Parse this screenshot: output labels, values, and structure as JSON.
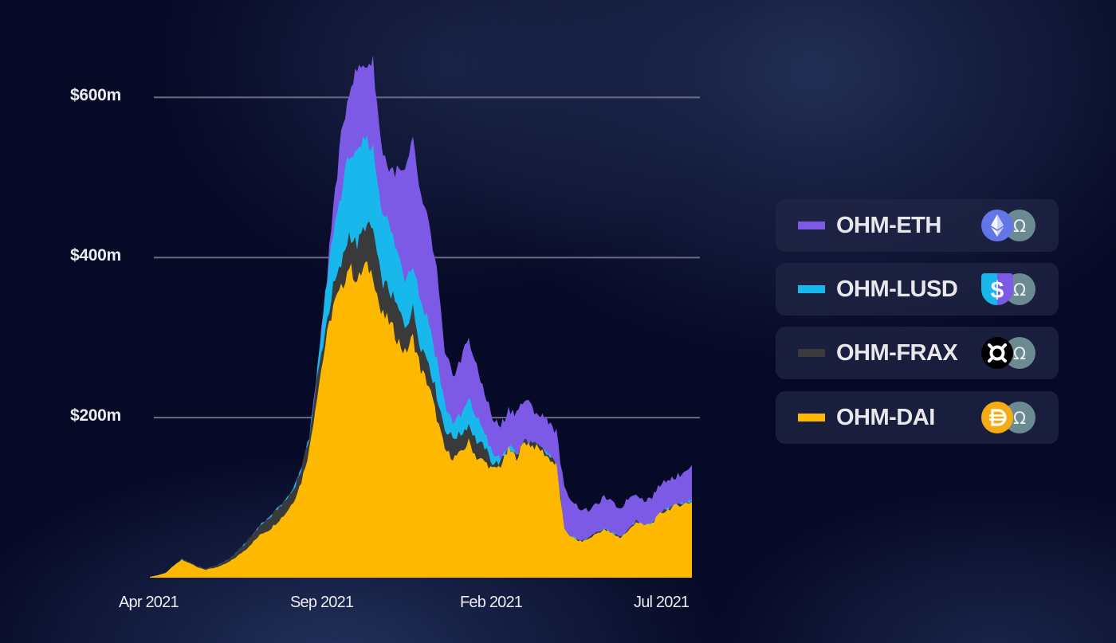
{
  "chart_data": {
    "type": "area",
    "stacked": true,
    "title": "",
    "xlabel": "",
    "ylabel": "",
    "ylim": [
      0,
      650
    ],
    "grid": {
      "horizontal": true,
      "values": [
        200,
        400,
        600
      ]
    },
    "y_ticks": [
      "$200m",
      "$400m",
      "$600m"
    ],
    "y_tick_values": [
      200,
      400,
      600
    ],
    "x_ticks": [
      "Apr 2021",
      "Sep 2021",
      "Feb 2021",
      "Jul 2021"
    ],
    "x_tick_positions": [
      0,
      0.33,
      0.66,
      1.0
    ],
    "legend_position": "right",
    "x": [
      0,
      1,
      2,
      3,
      4,
      5,
      6,
      7,
      8,
      9,
      10,
      11,
      12,
      13,
      14,
      15,
      16,
      17,
      18,
      19,
      20,
      21,
      22,
      23,
      24,
      25,
      26,
      27,
      28,
      29,
      30,
      31,
      32,
      33,
      34,
      35,
      36,
      37,
      38,
      39,
      40,
      41,
      42,
      43,
      44,
      45,
      46,
      47,
      48,
      49,
      50,
      51,
      52,
      53,
      54,
      55,
      56,
      57,
      58,
      59,
      60,
      61,
      62,
      63,
      64,
      65,
      66,
      67,
      68
    ],
    "series": [
      {
        "name": "OHM-DAI",
        "color": "#ffb800",
        "values": [
          1,
          3,
          6,
          15,
          22,
          18,
          13,
          10,
          12,
          15,
          20,
          27,
          35,
          45,
          55,
          60,
          70,
          80,
          95,
          120,
          160,
          230,
          290,
          340,
          360,
          390,
          370,
          390,
          380,
          330,
          320,
          300,
          280,
          300,
          260,
          240,
          200,
          160,
          150,
          155,
          170,
          150,
          145,
          135,
          140,
          160,
          150,
          170,
          165,
          160,
          150,
          140,
          60,
          50,
          45,
          48,
          55,
          60,
          55,
          50,
          58,
          70,
          65,
          68,
          80,
          85,
          90,
          92,
          95
        ],
        "unit": "$m"
      },
      {
        "name": "OHM-FRAX",
        "color": "#3a3a3a",
        "values": [
          0,
          0,
          0,
          0,
          1,
          1,
          1,
          1,
          2,
          3,
          4,
          6,
          8,
          10,
          12,
          14,
          16,
          16,
          15,
          15,
          16,
          18,
          20,
          22,
          30,
          40,
          45,
          50,
          55,
          42,
          40,
          38,
          35,
          35,
          30,
          30,
          28,
          26,
          25,
          24,
          22,
          20,
          18,
          8,
          4,
          3,
          2,
          2,
          2,
          2,
          2,
          2,
          1,
          1,
          1,
          1,
          1,
          1,
          1,
          1,
          1,
          1,
          1,
          1,
          1,
          1,
          1,
          1,
          1
        ],
        "unit": "$m"
      },
      {
        "name": "OHM-LUSD",
        "color": "#18b8ec",
        "values": [
          0,
          0,
          0,
          0,
          0,
          0,
          0,
          0,
          0,
          0,
          0,
          0,
          0,
          0,
          0,
          0,
          0,
          0,
          0,
          0,
          0,
          8,
          40,
          70,
          90,
          100,
          110,
          110,
          100,
          95,
          80,
          70,
          60,
          60,
          55,
          50,
          45,
          30,
          20,
          22,
          30,
          30,
          20,
          10,
          5,
          2,
          0,
          0,
          0,
          0,
          0,
          0,
          0,
          0,
          0,
          0,
          0,
          0,
          0,
          0,
          0,
          0,
          0,
          0,
          0,
          0,
          0,
          0,
          0
        ],
        "unit": "$m"
      },
      {
        "name": "OHM-ETH",
        "color": "#7c5ae6",
        "values": [
          0,
          0,
          0,
          0,
          0,
          0,
          0,
          0,
          0,
          0,
          0,
          0,
          0,
          0,
          0,
          0,
          0,
          0,
          0,
          0,
          0,
          0,
          5,
          30,
          70,
          80,
          110,
          90,
          110,
          75,
          70,
          100,
          130,
          150,
          130,
          120,
          110,
          60,
          60,
          70,
          80,
          60,
          50,
          45,
          40,
          45,
          55,
          50,
          45,
          40,
          45,
          40,
          50,
          45,
          40,
          35,
          35,
          40,
          38,
          35,
          40,
          35,
          30,
          32,
          35,
          38,
          35,
          40,
          45
        ],
        "unit": "$m"
      }
    ]
  },
  "axes": {
    "y_labels": [
      "$600m",
      "$400m",
      "$200m"
    ],
    "x_labels": [
      "Apr 2021",
      "Sep 2021",
      "Feb 2021",
      "Jul 2021"
    ]
  },
  "legend": {
    "items": [
      {
        "label": "OHM-ETH",
        "color": "#7c5ae6",
        "icon": "eth-icon",
        "pair_icon": "ohm-icon"
      },
      {
        "label": "OHM-LUSD",
        "color": "#18b8ec",
        "icon": "lusd-icon",
        "pair_icon": "ohm-icon"
      },
      {
        "label": "OHM-FRAX",
        "color": "#3a3a3a",
        "icon": "frax-icon",
        "pair_icon": "ohm-icon"
      },
      {
        "label": "OHM-DAI",
        "color": "#ffb800",
        "icon": "dai-icon",
        "pair_icon": "ohm-icon"
      }
    ]
  },
  "icons": {
    "ohm_glyph": "Ω",
    "dai_glyph": "Đ"
  },
  "colors": {
    "background": "#070a26",
    "gridline": "#6a6c86",
    "text": "#ebebf0",
    "card": "#1d2146",
    "ohm_coin": "#6b8a92"
  }
}
